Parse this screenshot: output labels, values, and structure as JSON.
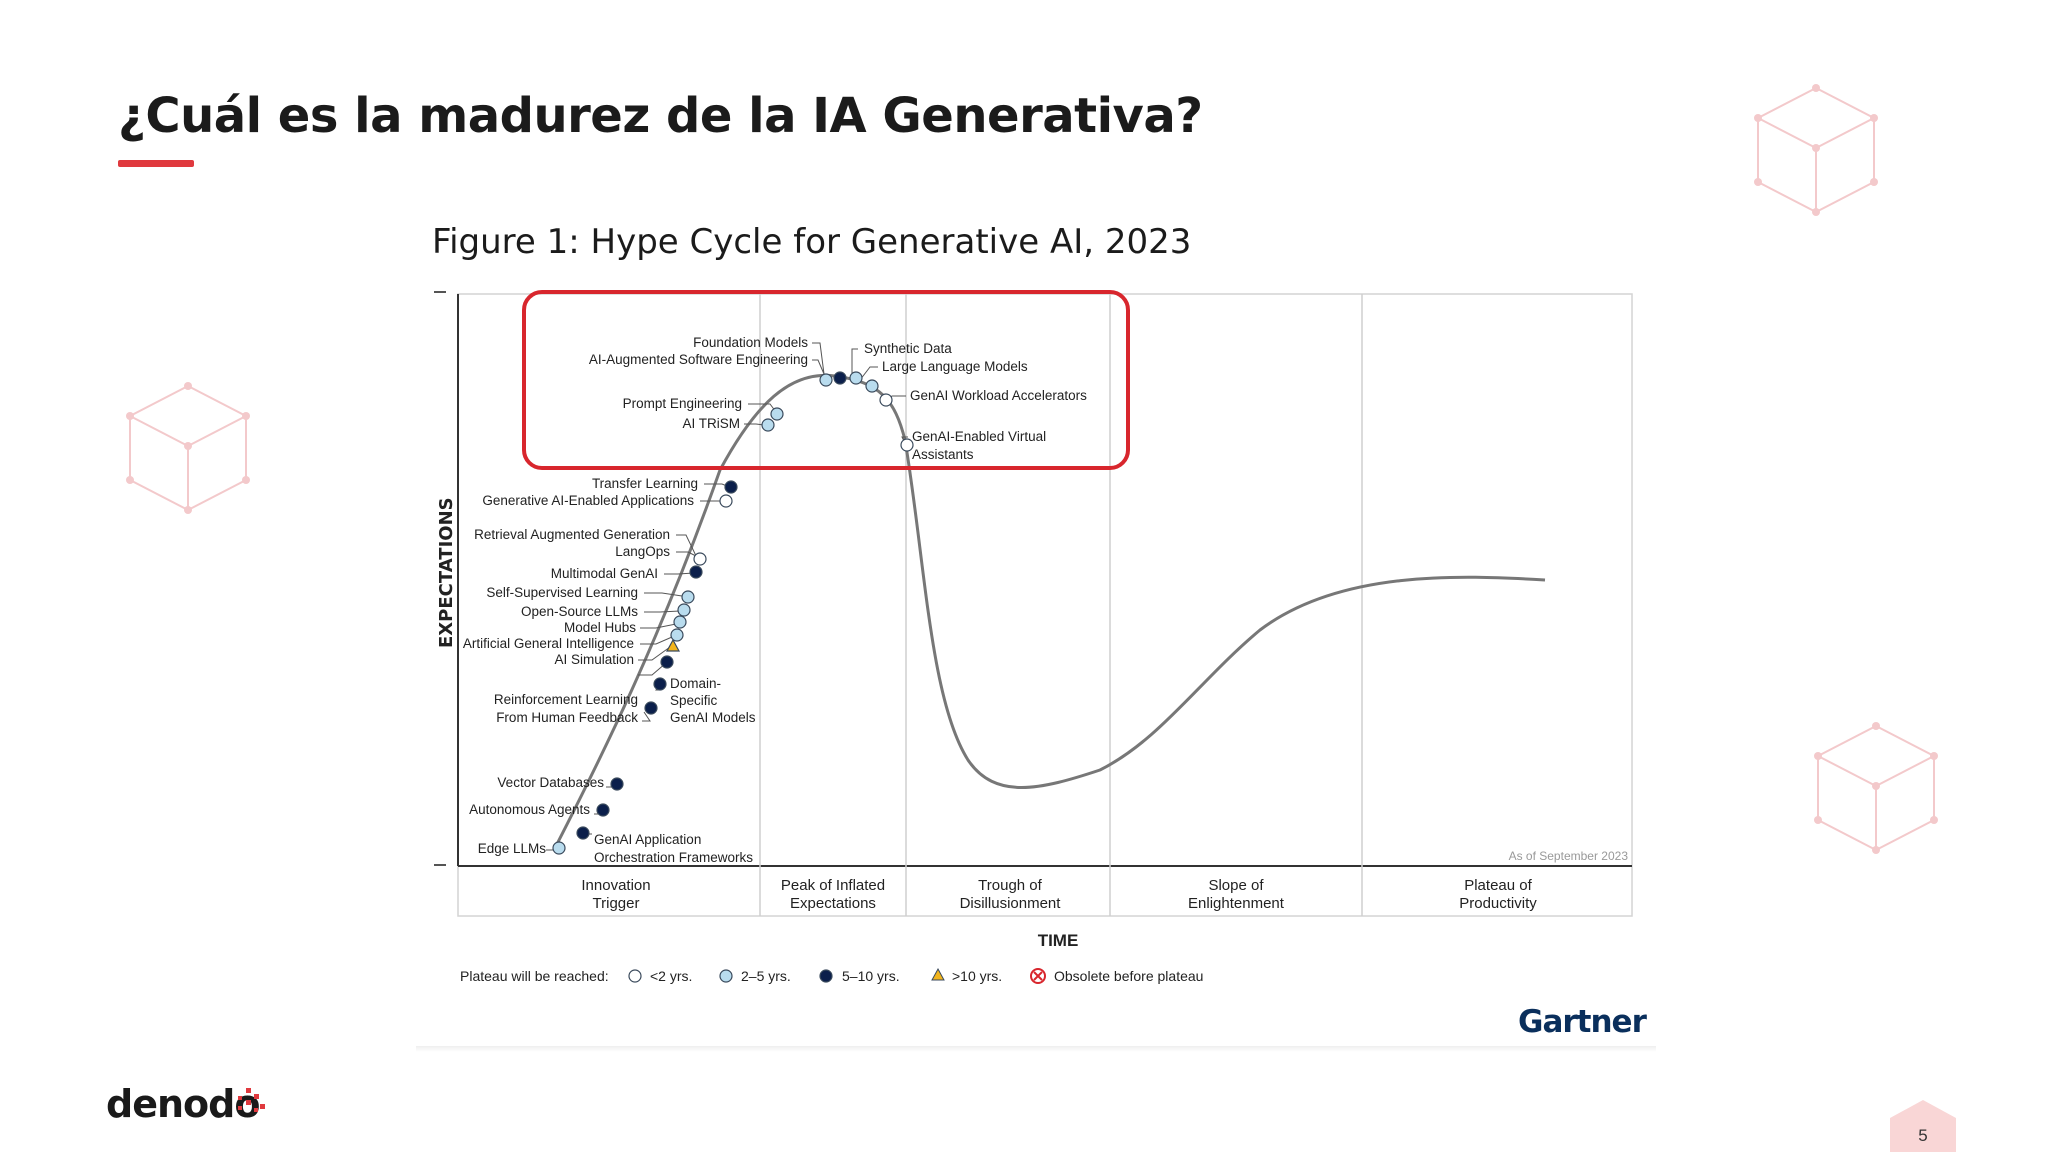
{
  "slide": {
    "title": "¿Cuál es la madurez de la IA Generativa?",
    "page_number": "5",
    "accent_color": "#e0393e",
    "logo_text": "denodo"
  },
  "figure": {
    "title": "Figure 1: Hype Cycle for Generative AI, 2023",
    "source": "Gartner",
    "as_of": "As of September 2023",
    "ylabel": "EXPECTATIONS",
    "xlabel": "TIME",
    "phases": [
      [
        "Innovation",
        "Trigger"
      ],
      [
        "Peak of Inflated",
        "Expectations"
      ],
      [
        "Trough of",
        "Disillusionment"
      ],
      [
        "Slope of",
        "Enlightenment"
      ],
      [
        "Plateau of",
        "Productivity"
      ]
    ],
    "legend": {
      "label": "Plateau will be reached:",
      "items": [
        {
          "symbol": "open-circle",
          "label": "<2 yrs."
        },
        {
          "symbol": "light-blue-circle",
          "label": "2–5 yrs."
        },
        {
          "symbol": "dark-navy-circle",
          "label": "5–10 yrs."
        },
        {
          "symbol": "yellow-triangle",
          "label": ">10 yrs."
        },
        {
          "symbol": "red-x-circle",
          "label": "Obsolete before plateau"
        }
      ]
    },
    "colors": {
      "lt2": "#ffffff",
      "y2to5": "#b9dcee",
      "y5to10": "#0b1f4b",
      "gt10": "#f2b41c",
      "obsolete": "#d8262d",
      "highlight_box": "#d8262d",
      "curve": "#777777"
    },
    "technologies": [
      {
        "label": "Edge LLMs",
        "plateau": "2-5"
      },
      {
        "label": "GenAI Application Orchestration Frameworks",
        "label_lines": [
          "GenAI Application",
          "Orchestration Frameworks"
        ],
        "plateau": "5-10"
      },
      {
        "label": "Autonomous Agents",
        "plateau": "5-10"
      },
      {
        "label": "Vector Databases",
        "plateau": "5-10"
      },
      {
        "label": "Reinforcement Learning From Human Feedback",
        "label_lines": [
          "Reinforcement Learning",
          "From Human Feedback"
        ],
        "plateau": "5-10"
      },
      {
        "label": "Domain-Specific GenAI Models",
        "label_lines": [
          "Domain-",
          "Specific",
          "GenAI Models"
        ],
        "plateau": "5-10"
      },
      {
        "label": "AI Simulation",
        "plateau": "5-10"
      },
      {
        "label": "Artificial General Intelligence",
        "plateau": ">10"
      },
      {
        "label": "Model Hubs",
        "plateau": "2-5"
      },
      {
        "label": "Open-Source LLMs",
        "plateau": "2-5"
      },
      {
        "label": "Self-Supervised Learning",
        "plateau": "2-5"
      },
      {
        "label": "Multimodal GenAI",
        "plateau": "5-10"
      },
      {
        "label": "LangOps",
        "plateau": "<2"
      },
      {
        "label": "Retrieval Augmented Generation",
        "plateau": "<2"
      },
      {
        "label": "Generative AI-Enabled Applications",
        "plateau": "<2"
      },
      {
        "label": "Transfer Learning",
        "plateau": "5-10"
      },
      {
        "label": "AI TRiSM",
        "plateau": "2-5"
      },
      {
        "label": "Prompt Engineering",
        "plateau": "2-5"
      },
      {
        "label": "AI-Augmented Software Engineering",
        "plateau": "2-5"
      },
      {
        "label": "Foundation Models",
        "plateau": "5-10"
      },
      {
        "label": "Synthetic Data",
        "plateau": "2-5"
      },
      {
        "label": "Large Language Models",
        "plateau": "2-5"
      },
      {
        "label": "GenAI Workload Accelerators",
        "plateau": "<2"
      },
      {
        "label": "GenAI-Enabled Virtual Assistants",
        "label_lines": [
          "GenAI-Enabled Virtual",
          "Assistants"
        ],
        "plateau": "<2"
      }
    ]
  }
}
